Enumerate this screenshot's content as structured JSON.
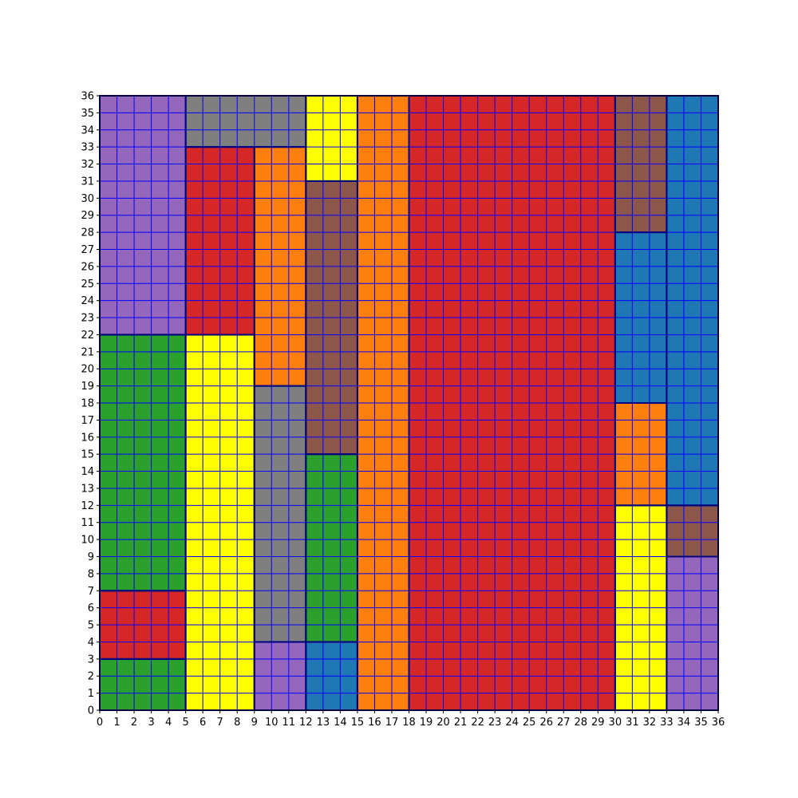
{
  "chart_data": {
    "type": "grid-partition",
    "x_range": [
      0,
      36
    ],
    "y_range": [
      0,
      36
    ],
    "x_ticks": [
      "0",
      "1",
      "2",
      "3",
      "4",
      "5",
      "6",
      "7",
      "8",
      "9",
      "10",
      "11",
      "12",
      "13",
      "14",
      "15",
      "16",
      "17",
      "18",
      "19",
      "20",
      "21",
      "22",
      "23",
      "24",
      "25",
      "26",
      "27",
      "28",
      "29",
      "30",
      "31",
      "32",
      "33",
      "34",
      "35",
      "36"
    ],
    "y_ticks": [
      "0",
      "1",
      "2",
      "3",
      "4",
      "5",
      "6",
      "7",
      "8",
      "9",
      "10",
      "11",
      "12",
      "13",
      "14",
      "15",
      "16",
      "17",
      "18",
      "19",
      "20",
      "21",
      "22",
      "23",
      "24",
      "25",
      "26",
      "27",
      "28",
      "29",
      "30",
      "31",
      "32",
      "33",
      "34",
      "35",
      "36"
    ],
    "grid": true,
    "grid_color": "#0000ff",
    "border_color": "#000080",
    "palette": {
      "blue": "#1f77b4",
      "orange": "#ff7f0e",
      "green": "#2ca02c",
      "red": "#d62728",
      "purple": "#9467bd",
      "brown": "#8c564b",
      "gray": "#7f7f7f",
      "yellow": "#ffff00"
    },
    "rectangles": [
      {
        "x0": 0,
        "x1": 5,
        "y0": 22,
        "y1": 36,
        "color": "purple"
      },
      {
        "x0": 0,
        "x1": 5,
        "y0": 7,
        "y1": 22,
        "color": "green"
      },
      {
        "x0": 0,
        "x1": 5,
        "y0": 3,
        "y1": 7,
        "color": "red"
      },
      {
        "x0": 0,
        "x1": 5,
        "y0": 0,
        "y1": 3,
        "color": "green"
      },
      {
        "x0": 5,
        "x1": 12,
        "y0": 33,
        "y1": 36,
        "color": "gray"
      },
      {
        "x0": 5,
        "x1": 9,
        "y0": 22,
        "y1": 33,
        "color": "red"
      },
      {
        "x0": 5,
        "x1": 9,
        "y0": 0,
        "y1": 22,
        "color": "yellow"
      },
      {
        "x0": 9,
        "x1": 12,
        "y0": 19,
        "y1": 33,
        "color": "orange"
      },
      {
        "x0": 9,
        "x1": 12,
        "y0": 4,
        "y1": 19,
        "color": "gray"
      },
      {
        "x0": 9,
        "x1": 12,
        "y0": 0,
        "y1": 4,
        "color": "purple"
      },
      {
        "x0": 12,
        "x1": 15,
        "y0": 31,
        "y1": 36,
        "color": "yellow"
      },
      {
        "x0": 12,
        "x1": 15,
        "y0": 15,
        "y1": 31,
        "color": "brown"
      },
      {
        "x0": 12,
        "x1": 15,
        "y0": 4,
        "y1": 15,
        "color": "green"
      },
      {
        "x0": 12,
        "x1": 15,
        "y0": 0,
        "y1": 4,
        "color": "blue"
      },
      {
        "x0": 15,
        "x1": 18,
        "y0": 0,
        "y1": 36,
        "color": "orange"
      },
      {
        "x0": 18,
        "x1": 30,
        "y0": 0,
        "y1": 36,
        "color": "red"
      },
      {
        "x0": 30,
        "x1": 33,
        "y0": 28,
        "y1": 36,
        "color": "brown"
      },
      {
        "x0": 30,
        "x1": 33,
        "y0": 18,
        "y1": 28,
        "color": "blue"
      },
      {
        "x0": 30,
        "x1": 33,
        "y0": 12,
        "y1": 18,
        "color": "orange"
      },
      {
        "x0": 30,
        "x1": 33,
        "y0": 0,
        "y1": 12,
        "color": "yellow"
      },
      {
        "x0": 33,
        "x1": 36,
        "y0": 12,
        "y1": 36,
        "color": "blue"
      },
      {
        "x0": 33,
        "x1": 36,
        "y0": 9,
        "y1": 12,
        "color": "brown"
      },
      {
        "x0": 33,
        "x1": 36,
        "y0": 0,
        "y1": 9,
        "color": "purple"
      }
    ]
  }
}
